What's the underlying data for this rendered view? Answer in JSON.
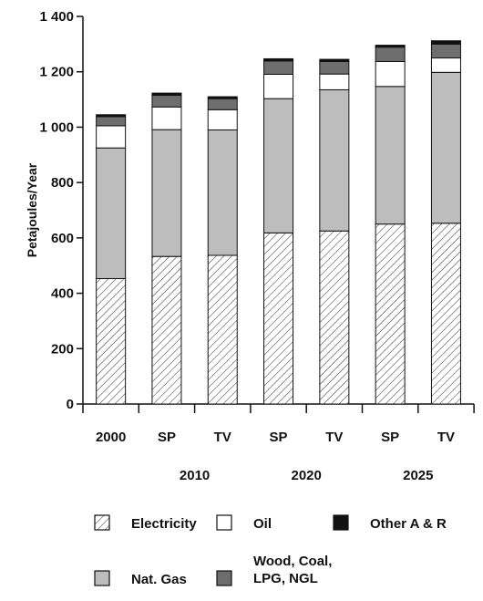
{
  "chart_data": {
    "type": "bar",
    "stacked": true,
    "ylabel": "Petajoules/Year",
    "ylim": [
      0,
      1400
    ],
    "yticks": [
      0,
      200,
      400,
      600,
      800,
      1000,
      1200,
      1400
    ],
    "ytick_labels": [
      "0",
      "200",
      "400",
      "600",
      "800",
      "1 000",
      "1 200",
      "1 400"
    ],
    "categories": [
      "2000",
      "SP",
      "TV",
      "SP",
      "TV",
      "SP",
      "TV"
    ],
    "group_labels": [
      {
        "label": "2010",
        "span": [
          1,
          2
        ]
      },
      {
        "label": "2020",
        "span": [
          3,
          4
        ]
      },
      {
        "label": "2025",
        "span": [
          5,
          6
        ]
      }
    ],
    "series": [
      {
        "name": "Electricity",
        "color": "#ffffff",
        "pattern": "hatch",
        "values": [
          453,
          533,
          537,
          618,
          625,
          650,
          653
        ]
      },
      {
        "name": "Nat. Gas",
        "color": "#bdbdbd",
        "values": [
          472,
          458,
          453,
          485,
          510,
          497,
          545
        ]
      },
      {
        "name": "Oil",
        "color": "#ffffff",
        "values": [
          80,
          82,
          73,
          88,
          57,
          90,
          52
        ]
      },
      {
        "name": "Wood, Coal, LPG, NGL",
        "color": "#6e6e6e",
        "values": [
          33,
          42,
          40,
          48,
          45,
          52,
          50
        ]
      },
      {
        "name": "Other A & R",
        "color": "#111111",
        "values": [
          7,
          8,
          7,
          8,
          8,
          7,
          12
        ]
      }
    ],
    "legend_position": "bottom",
    "grid": false
  }
}
